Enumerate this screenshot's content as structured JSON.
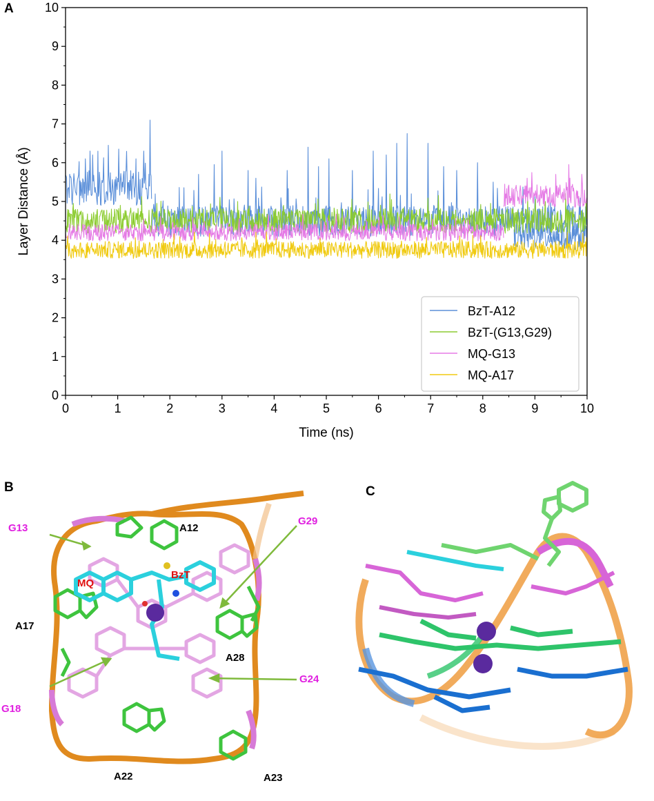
{
  "panels": {
    "a": "A",
    "b": "B",
    "c": "C"
  },
  "chart_data": {
    "type": "line",
    "xlabel": "Time (ns)",
    "ylabel": "Layer Distance (Å)",
    "xlim": [
      0,
      10
    ],
    "ylim": [
      0,
      10
    ],
    "xticks": [
      "0",
      "1",
      "2",
      "3",
      "4",
      "5",
      "6",
      "7",
      "8",
      "9",
      "10"
    ],
    "yticks": [
      "0",
      "1",
      "2",
      "3",
      "4",
      "5",
      "6",
      "7",
      "8",
      "9",
      "10"
    ],
    "grid": false,
    "legend": "lower-right",
    "series": [
      {
        "name": "BzT-A12",
        "color": "#5b8fd9",
        "segments": [
          {
            "t0": 0.0,
            "t1": 1.65,
            "mean": 5.35,
            "amp": 0.45,
            "spikes": [
              [
                0.38,
                6.1
              ],
              [
                0.47,
                6.3
              ],
              [
                0.52,
                6.2
              ],
              [
                0.82,
                6.45
              ],
              [
                1.02,
                6.35
              ],
              [
                1.35,
                6.1
              ],
              [
                1.5,
                6.3
              ],
              [
                1.62,
                7.1
              ]
            ]
          },
          {
            "t0": 1.65,
            "t1": 10.0,
            "mean": 4.5,
            "amp": 0.4,
            "spikes": [
              [
                2.55,
                5.7
              ],
              [
                2.85,
                5.95
              ],
              [
                3.0,
                6.3
              ],
              [
                3.5,
                5.8
              ],
              [
                3.65,
                5.6
              ],
              [
                4.25,
                5.8
              ],
              [
                4.65,
                6.4
              ],
              [
                4.85,
                5.9
              ],
              [
                5.05,
                6.1
              ],
              [
                5.5,
                5.8
              ],
              [
                5.9,
                6.3
              ],
              [
                6.15,
                6.2
              ],
              [
                6.35,
                6.5
              ],
              [
                6.55,
                6.75
              ],
              [
                6.95,
                6.5
              ],
              [
                7.25,
                5.9
              ],
              [
                7.5,
                5.8
              ],
              [
                7.9,
                6.0
              ],
              [
                8.2,
                5.5
              ]
            ]
          },
          {
            "t0": 8.6,
            "t1": 10.0,
            "mean": 4.1,
            "amp": 0.35,
            "spikes": []
          }
        ]
      },
      {
        "name": "BzT-(G13,G29)",
        "color": "#8ccc30",
        "segments": [
          {
            "t0": 0.0,
            "t1": 10.0,
            "mean": 4.5,
            "amp": 0.32,
            "spikes": [
              [
                0.15,
                4.95
              ],
              [
                1.05,
                4.9
              ],
              [
                1.75,
                4.95
              ],
              [
                3.3,
                5.0
              ],
              [
                6.25,
                5.05
              ],
              [
                8.15,
                4.95
              ],
              [
                9.2,
                5.0
              ]
            ]
          }
        ]
      },
      {
        "name": "MQ-G13",
        "color": "#e57ae5",
        "segments": [
          {
            "t0": 0.0,
            "t1": 8.4,
            "mean": 4.2,
            "amp": 0.22,
            "spikes": []
          },
          {
            "t0": 8.4,
            "t1": 10.0,
            "mean": 5.15,
            "amp": 0.3,
            "spikes": [
              [
                8.85,
                5.6
              ],
              [
                9.4,
                5.7
              ],
              [
                9.65,
                5.95
              ],
              [
                9.9,
                5.7
              ]
            ]
          }
        ]
      },
      {
        "name": "MQ-A17",
        "color": "#f0ca10",
        "segments": [
          {
            "t0": 0.0,
            "t1": 10.0,
            "mean": 3.75,
            "amp": 0.22,
            "spikes": []
          }
        ]
      }
    ]
  },
  "figure_b": {
    "labels": {
      "a12": "A12",
      "g13": "G13",
      "mq": "MQ",
      "bzt": "BzT",
      "g29": "G29",
      "a17": "A17",
      "a28": "A28",
      "g24": "G24",
      "g18": "G18",
      "a22": "A22",
      "a23": "A23"
    },
    "colors": {
      "backbone": "#e08a1e",
      "adenine": "#4cc94c",
      "guanine": "#e3a6e3",
      "ligand": "#2bd0dd",
      "ion": "#5a2a9e",
      "arrow": "#7fba3c"
    }
  },
  "figure_c": {
    "colors": {
      "backbone": "#f0a24a",
      "pink": "#d765d7",
      "green": "#2ec46a",
      "blue": "#1a6fd0",
      "ion": "#5a2a9e"
    }
  }
}
